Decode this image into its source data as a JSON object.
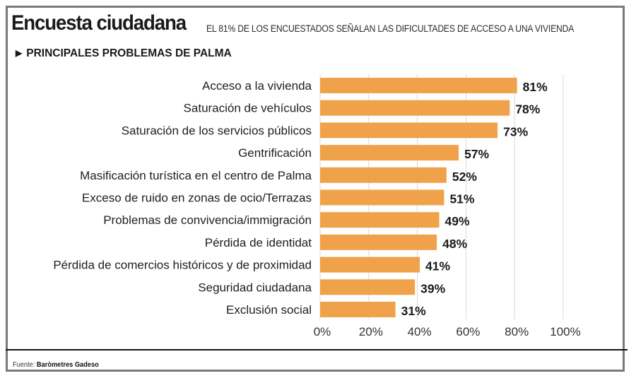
{
  "header": {
    "title": "Encuesta ciudadana",
    "subtitle": "EL 81% DE LOS ENCUESTADOS SEÑALAN LAS DIFICULTADES DE ACCESO A UNA VIVIENDA",
    "section_icon": "▶",
    "section_title": "PRINCIPALES PROBLEMAS DE PALMA"
  },
  "footer": {
    "source_label": "Fuente:",
    "source_name": "Baròmetres Gadeso"
  },
  "colors": {
    "bar": "#f0a24a",
    "grid": "#d9d9d9",
    "text": "#1e1e1e"
  },
  "chart_data": {
    "type": "bar",
    "orientation": "horizontal",
    "title": "PRINCIPALES PROBLEMAS DE PALMA",
    "xlabel": "",
    "ylabel": "",
    "categories": [
      "Acceso a la vivienda",
      "Saturación de vehículos",
      "Saturación de los servicios públicos",
      "Gentrificación",
      "Masificación turística en el centro de Palma",
      "Exceso de ruido en zonas de ocio/Terrazas",
      "Problemas de convivencia/immigración",
      "Pérdida de identidat",
      "Pérdida de comercios históricos y de proximidad",
      "Seguridad ciudadana",
      "Exclusión social"
    ],
    "values": [
      81,
      78,
      73,
      57,
      52,
      51,
      49,
      48,
      41,
      39,
      31
    ],
    "value_labels": [
      "81%",
      "78%",
      "73%",
      "57%",
      "52%",
      "51%",
      "49%",
      "48%",
      "41%",
      "39%",
      "31%"
    ],
    "xlim": [
      0,
      100
    ],
    "xticks": [
      0,
      20,
      40,
      60,
      80,
      100
    ],
    "xtick_labels": [
      "0%",
      "20%",
      "40%",
      "60%",
      "80%",
      "100%"
    ],
    "grid": true,
    "legend": "none"
  }
}
